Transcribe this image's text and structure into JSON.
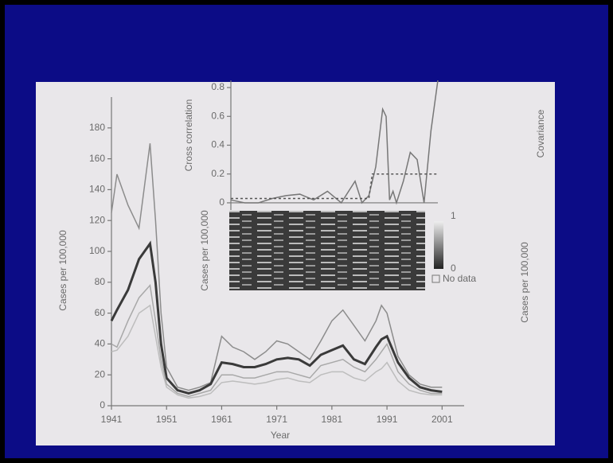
{
  "chart_data": [
    {
      "type": "line",
      "title": "Year",
      "ylabel": "Cases per 100,000",
      "right_labels": [
        "Covariance",
        "Cases per 100,000"
      ],
      "xlim": [
        1941,
        2005
      ],
      "xticks": [
        1941,
        1951,
        1961,
        1971,
        1981,
        1991,
        2001
      ],
      "ylim": [
        0,
        200
      ],
      "yticks": [
        0,
        20,
        40,
        60,
        80,
        100,
        120,
        140,
        160,
        180
      ],
      "x": [
        1941,
        1942,
        1944,
        1946,
        1948,
        1949,
        1950,
        1951,
        1953,
        1955,
        1957,
        1959,
        1961,
        1963,
        1965,
        1967,
        1969,
        1971,
        1973,
        1975,
        1977,
        1979,
        1981,
        1983,
        1985,
        1987,
        1989,
        1990,
        1991,
        1993,
        1995,
        1997,
        1999,
        2001
      ],
      "series": [
        {
          "color": "#8c8c8c",
          "width": 1.5,
          "values": [
            125,
            150,
            130,
            115,
            170,
            120,
            60,
            25,
            12,
            10,
            12,
            15,
            45,
            38,
            35,
            30,
            35,
            42,
            40,
            35,
            30,
            42,
            55,
            62,
            52,
            42,
            55,
            65,
            60,
            32,
            20,
            14,
            12,
            12
          ]
        },
        {
          "color": "#3a3a3a",
          "width": 3,
          "values": [
            55,
            62,
            75,
            95,
            105,
            80,
            40,
            18,
            10,
            8,
            10,
            14,
            28,
            27,
            25,
            25,
            27,
            30,
            31,
            30,
            26,
            33,
            36,
            39,
            30,
            27,
            38,
            43,
            45,
            28,
            18,
            12,
            10,
            9
          ]
        },
        {
          "color": "#a8a8a8",
          "width": 1.5,
          "values": [
            40,
            38,
            55,
            70,
            78,
            55,
            30,
            14,
            8,
            6,
            8,
            10,
            20,
            20,
            18,
            18,
            20,
            22,
            22,
            20,
            18,
            26,
            28,
            30,
            25,
            22,
            30,
            35,
            40,
            22,
            14,
            10,
            8,
            8
          ]
        },
        {
          "color": "#bdbdbd",
          "width": 1.5,
          "values": [
            35,
            36,
            45,
            60,
            65,
            45,
            25,
            12,
            7,
            5,
            6,
            8,
            15,
            16,
            15,
            14,
            15,
            17,
            18,
            16,
            15,
            20,
            22,
            22,
            18,
            16,
            22,
            24,
            28,
            16,
            10,
            8,
            7,
            7
          ]
        }
      ]
    },
    {
      "type": "line",
      "ylabel": "Cross correlation",
      "heatmap_label": "Cases per 100,000",
      "colorbar_ticks": [
        0,
        1
      ],
      "no_data_label": "No data",
      "xlim": [
        1941,
        2001
      ],
      "ylim": [
        -0.05,
        0.85
      ],
      "yticks": [
        0,
        0.2,
        0.4,
        0.6,
        0.8
      ],
      "x": [
        1941,
        1945,
        1949,
        1953,
        1957,
        1961,
        1965,
        1969,
        1973,
        1977,
        1979,
        1981,
        1983,
        1985,
        1986,
        1987,
        1988,
        1989,
        1991,
        1993,
        1995,
        1997,
        1999,
        2001
      ],
      "series": [
        {
          "color": "#777777",
          "width": 1.5,
          "dash": false,
          "values": [
            0.02,
            0,
            0,
            0.03,
            0.05,
            0.06,
            0.02,
            0.08,
            0,
            0.15,
            0,
            0.05,
            0.25,
            0.65,
            0.6,
            0.02,
            0.08,
            0,
            0.15,
            0.35,
            0.3,
            0,
            0.5,
            0.85
          ]
        },
        {
          "color": "#555555",
          "width": 1.5,
          "dash": true,
          "x": [
            1941,
            1981,
            1982,
            2001
          ],
          "values": [
            0.03,
            0.03,
            0.2,
            0.2
          ]
        }
      ]
    }
  ]
}
